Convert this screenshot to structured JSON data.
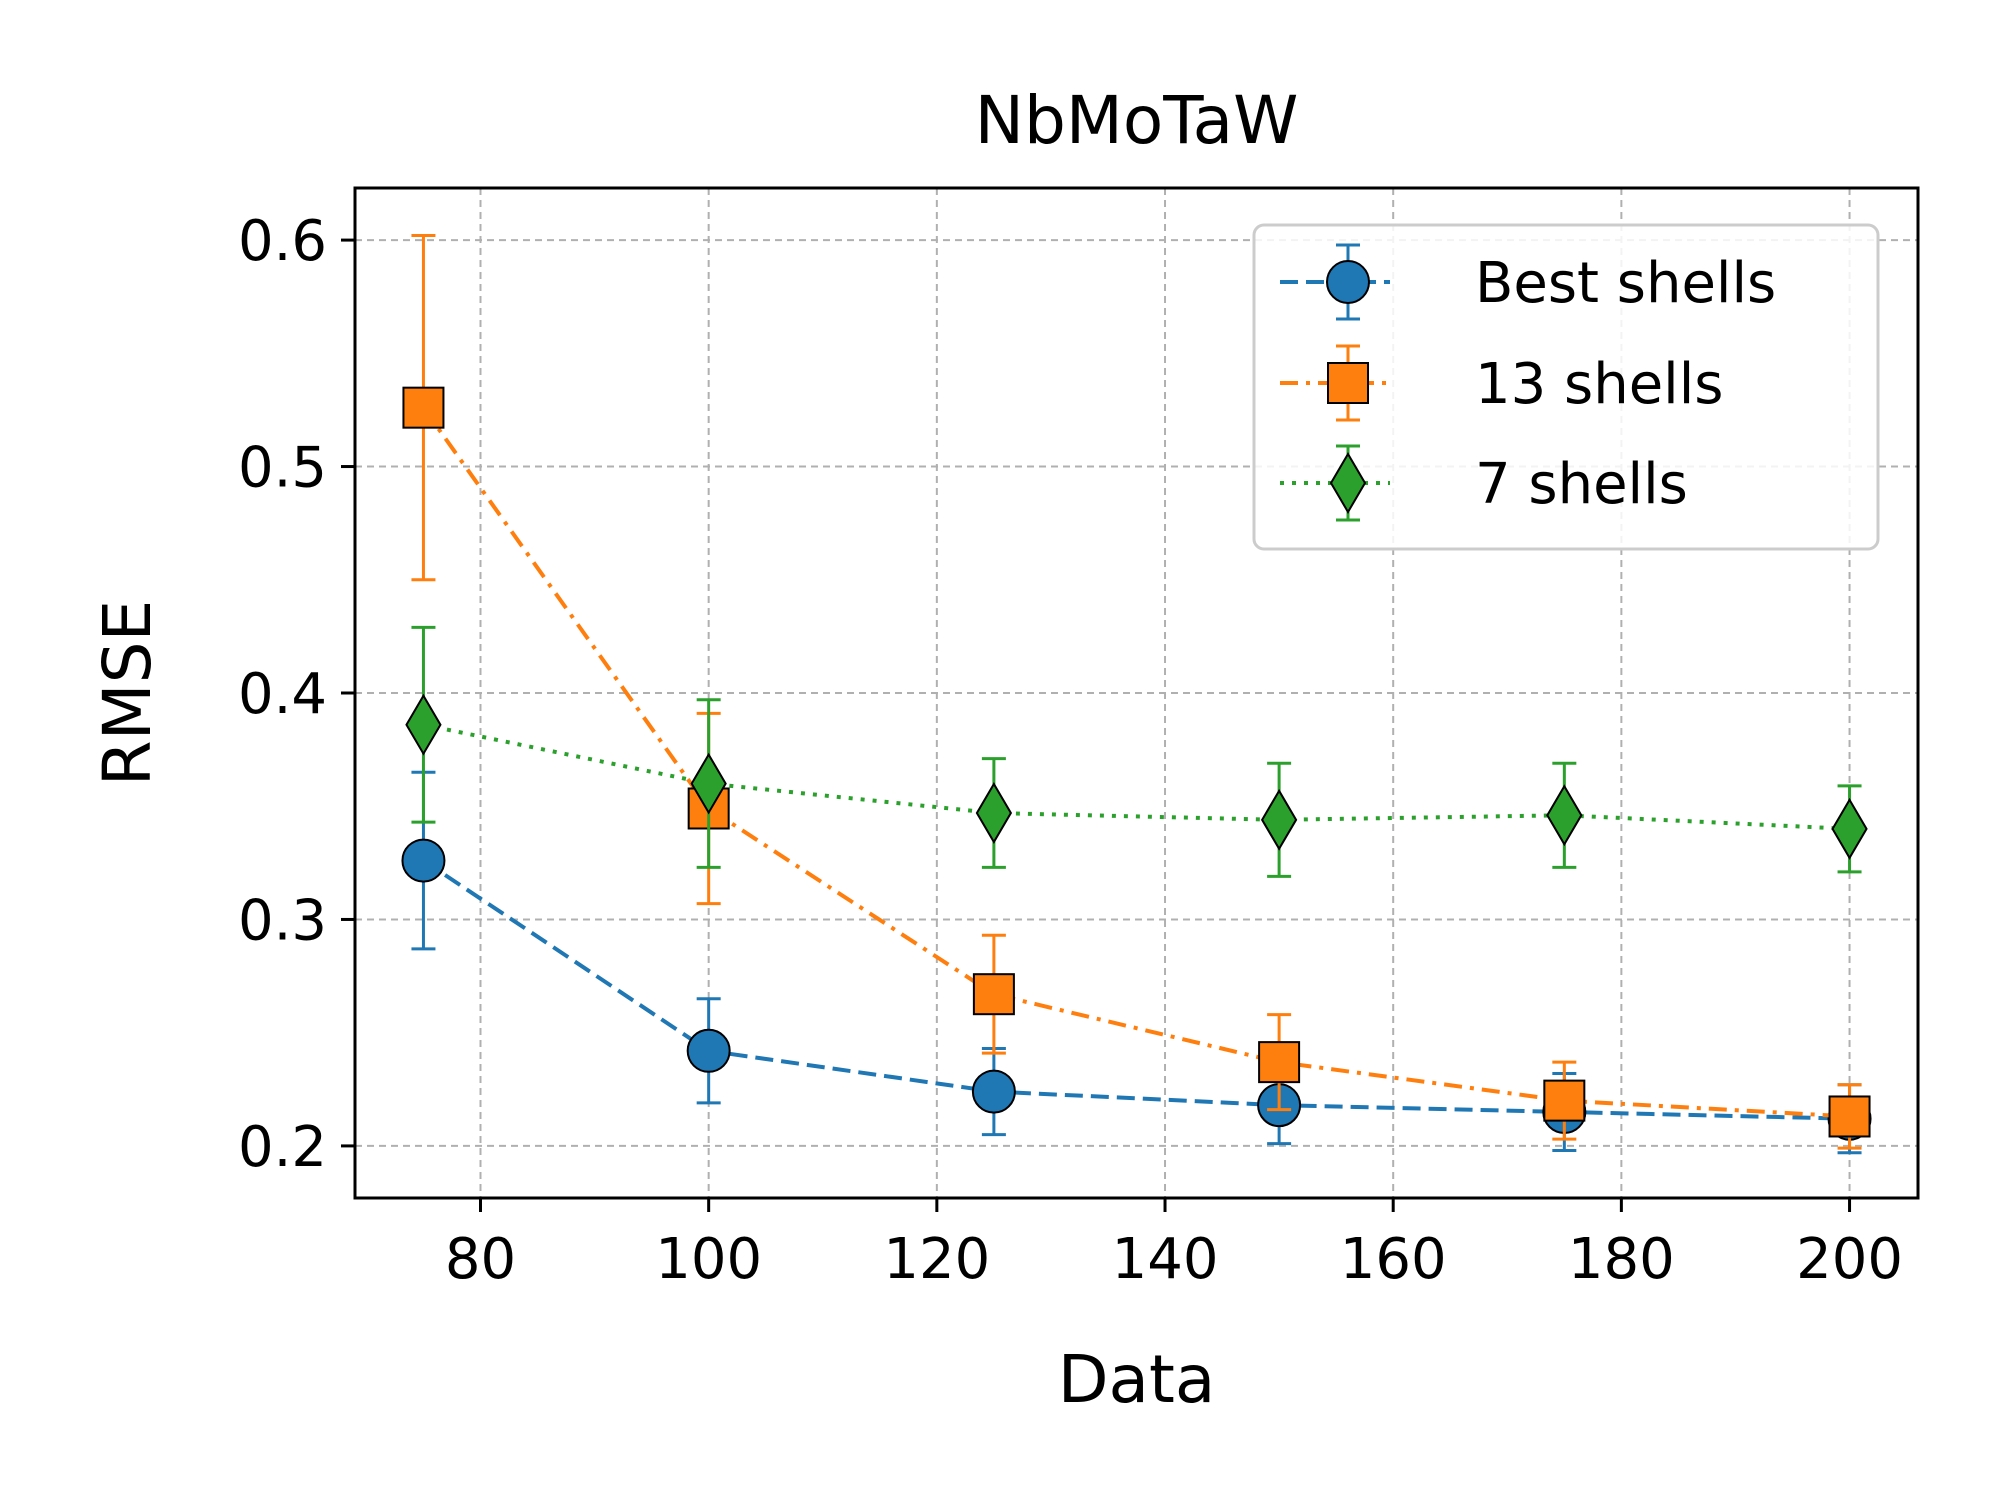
{
  "chart_data": {
    "type": "line",
    "title": "NbMoTaW",
    "xlabel": "Data",
    "ylabel": "RMSE",
    "xlim": [
      69,
      206
    ],
    "ylim": [
      0.177,
      0.623
    ],
    "xticks": [
      80,
      100,
      120,
      140,
      160,
      180,
      200
    ],
    "xtick_labels": [
      "80",
      "100",
      "120",
      "140",
      "160",
      "180",
      "200"
    ],
    "yticks": [
      0.2,
      0.3,
      0.4,
      0.5,
      0.6
    ],
    "ytick_labels": [
      "0.2",
      "0.3",
      "0.4",
      "0.5",
      "0.6"
    ],
    "grid": true,
    "legend_position": "top-right",
    "x": [
      75,
      100,
      125,
      150,
      175,
      200
    ],
    "series": [
      {
        "name": "Best shells",
        "color": "#1f77b4",
        "marker": "circle",
        "linestyle": "dashed",
        "values": [
          0.326,
          0.242,
          0.224,
          0.218,
          0.215,
          0.212
        ],
        "errors": [
          0.039,
          0.023,
          0.019,
          0.017,
          0.017,
          0.015
        ]
      },
      {
        "name": "13 shells",
        "color": "#ff7f0e",
        "marker": "square",
        "linestyle": "dashdot",
        "values": [
          0.526,
          0.349,
          0.267,
          0.237,
          0.22,
          0.213
        ],
        "errors": [
          0.076,
          0.042,
          0.026,
          0.021,
          0.017,
          0.014
        ]
      },
      {
        "name": "7 shells",
        "color": "#2ca02c",
        "marker": "diamond",
        "linestyle": "dotted",
        "values": [
          0.386,
          0.36,
          0.347,
          0.344,
          0.346,
          0.34
        ],
        "errors": [
          0.043,
          0.037,
          0.024,
          0.025,
          0.023,
          0.019
        ]
      }
    ]
  }
}
